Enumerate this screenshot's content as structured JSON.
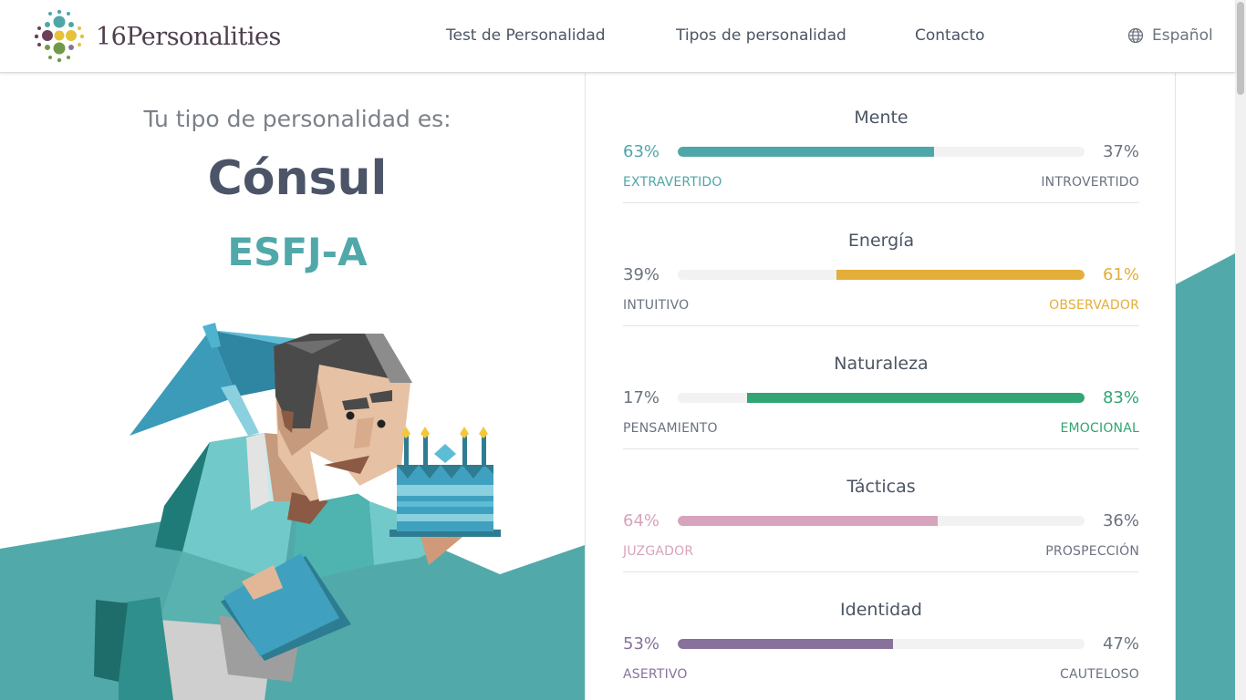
{
  "header": {
    "logo_text": "16Personalities",
    "nav": [
      {
        "label": "Test de Personalidad"
      },
      {
        "label": "Tipos de personalidad"
      },
      {
        "label": "Contacto"
      }
    ],
    "language": "Español"
  },
  "result": {
    "subtitle": "Tu tipo de personalidad es:",
    "type_name": "Cónsul",
    "type_code": "ESFJ-A"
  },
  "traits": [
    {
      "title": "Mente",
      "left_pct": "63%",
      "right_pct": "37%",
      "left_label": "EXTRAVERTIDO",
      "right_label": "INTROVERTIDO",
      "value": 63,
      "dominant": "left",
      "color": "#4fa6a8"
    },
    {
      "title": "Energía",
      "left_pct": "39%",
      "right_pct": "61%",
      "left_label": "INTUITIVO",
      "right_label": "OBSERVADOR",
      "value": 61,
      "dominant": "right",
      "color": "#e4ae3a"
    },
    {
      "title": "Naturaleza",
      "left_pct": "17%",
      "right_pct": "83%",
      "left_label": "PENSAMIENTO",
      "right_label": "EMOCIONAL",
      "value": 83,
      "dominant": "right",
      "color": "#33a474"
    },
    {
      "title": "Tácticas",
      "left_pct": "64%",
      "right_pct": "36%",
      "left_label": "JUZGADOR",
      "right_label": "PROSPECCIÓN",
      "value": 64,
      "dominant": "left",
      "color": "#d6a4bc"
    },
    {
      "title": "Identidad",
      "left_pct": "53%",
      "right_pct": "47%",
      "left_label": "ASERTIVO",
      "right_label": "CAUTELOSO",
      "value": 53,
      "dominant": "left",
      "color": "#88719b"
    }
  ],
  "icons": {
    "logo": "16personalities-logo-icon",
    "language": "globe-icon"
  }
}
